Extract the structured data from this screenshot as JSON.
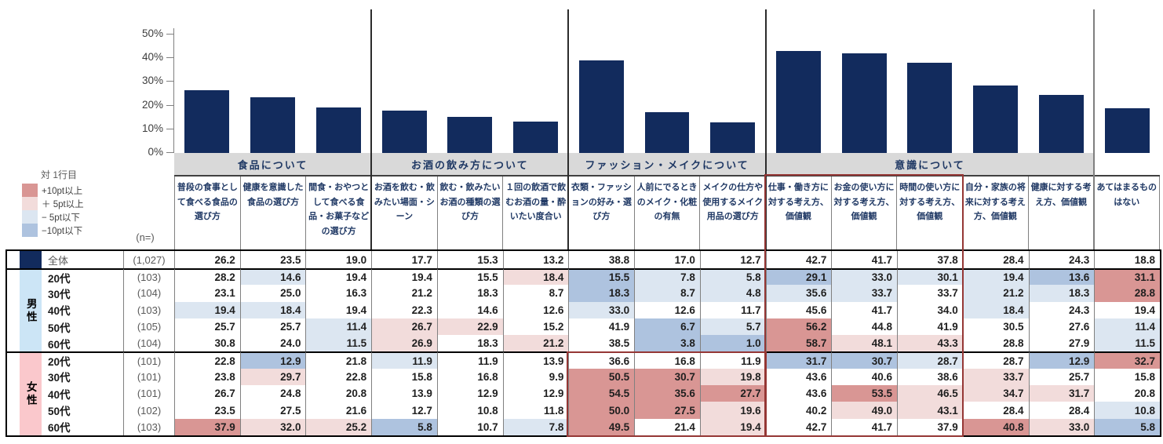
{
  "colors": {
    "bar": "#122B5D",
    "band": "#D9D9D9",
    "p2": "#D99694",
    "p1": "#F2DCDB",
    "m1": "#DCE6F1",
    "m2": "#AEC3DF",
    "male_swatch": "#CCE5F6",
    "female_swatch": "#FAC8CC",
    "total_swatch": "#122B5D",
    "highlight_box": "#953735"
  },
  "legend": {
    "title": "対 1行目",
    "items": [
      {
        "code": "p2",
        "label": "+10pt以上"
      },
      {
        "code": "p1",
        "label": "＋ 5pt以上"
      },
      {
        "code": "m1",
        "label": "− 5pt以下"
      },
      {
        "code": "m2",
        "label": "−10pt以下"
      }
    ]
  },
  "chart_data": [
    {
      "type": "bar",
      "title": "",
      "categories": [
        "普段の食事として食べる食品の選び方",
        "健康を意識した食品の選び方",
        "間食・おやつとして食べる食品・お菓子などの選び方",
        "お酒を飲む・飲みたい場面・シーン",
        "飲む・飲みたいお酒の種類の選び方",
        "１回の飲酒で飲むお酒の量・酔いたい度合い",
        "衣類・ファッションの好み・選び方",
        "人前にでるときのメイク・化粧の有無",
        "メイクの仕方や使用するメイク用品の選び方",
        "仕事・働き方に対する考え方、価値観",
        "お金の使い方に対する考え方、価値観",
        "時間の使い方に対する考え方、価値観",
        "自分・家族の将来に対する考え方、価値観",
        "健康に対する考え方、価値観",
        "あてはまるものはない"
      ],
      "values": [
        26.2,
        23.5,
        19.0,
        17.7,
        15.3,
        13.2,
        38.8,
        17.0,
        12.7,
        42.7,
        41.7,
        37.8,
        28.4,
        24.3,
        18.8
      ],
      "ylim": [
        0,
        50
      ],
      "grid": false,
      "y_tick_labels": [
        "50%",
        "40%",
        "30%",
        "20%",
        "10%",
        "0%"
      ],
      "group_bands": [
        {
          "label": "食品について",
          "span": 3
        },
        {
          "label": "お酒の飲み方について",
          "span": 3
        },
        {
          "label": "ファッション・メイクについて",
          "span": 3
        },
        {
          "label": "意識について",
          "span": 5
        },
        {
          "label": "",
          "span": 1
        }
      ]
    },
    {
      "type": "table",
      "n_label": "(n=)",
      "columns": [
        "普段の食事として食べる食品の選び方",
        "健康を意識した食品の選び方",
        "間食・おやつとして食べる食品・お菓子などの選び方",
        "お酒を飲む・飲みたい場面・シーン",
        "飲む・飲みたいお酒の種類の選び方",
        "１回の飲酒で飲むお酒の量・酔いたい度合い",
        "衣類・ファッションの好み・選び方",
        "人前にでるときのメイク・化粧の有無",
        "メイクの仕方や使用するメイク用品の選び方",
        "仕事・働き方に対する考え方、価値観",
        "お金の使い方に対する考え方、価値観",
        "時間の使い方に対する考え方、価値観",
        "自分・家族の将来に対する考え方、価値観",
        "健康に対する考え方、価値観",
        "あてはまるものはない"
      ],
      "blocks": [
        {
          "id": "total",
          "label": "",
          "swatch": "total_swatch",
          "rows": [
            {
              "label": "全体",
              "n": "(1,027)",
              "values": [
                26.2,
                23.5,
                19.0,
                17.7,
                15.3,
                13.2,
                38.8,
                17.0,
                12.7,
                42.7,
                41.7,
                37.8,
                28.4,
                24.3,
                18.8
              ],
              "hl": [
                "",
                "",
                "",
                "",
                "",
                "",
                "",
                "",
                "",
                "",
                "",
                "",
                "",
                "",
                ""
              ]
            }
          ]
        },
        {
          "id": "male",
          "label": "男性",
          "swatch": "male_swatch",
          "rows": [
            {
              "label": "20代",
              "n": "(103)",
              "values": [
                28.2,
                14.6,
                19.4,
                19.4,
                15.5,
                18.4,
                15.5,
                7.8,
                5.8,
                29.1,
                33.0,
                30.1,
                19.4,
                13.6,
                31.1
              ],
              "hl": [
                "",
                "m1",
                "",
                "",
                "",
                "p1",
                "m2",
                "m1",
                "m1",
                "m2",
                "m1",
                "m1",
                "m1",
                "m2",
                "p2"
              ]
            },
            {
              "label": "30代",
              "n": "(104)",
              "values": [
                23.1,
                25.0,
                16.3,
                21.2,
                18.3,
                8.7,
                18.3,
                8.7,
                4.8,
                35.6,
                33.7,
                33.7,
                21.2,
                18.3,
                28.8
              ],
              "hl": [
                "",
                "",
                "",
                "",
                "",
                "",
                "m2",
                "m1",
                "m1",
                "m1",
                "m1",
                "",
                "m1",
                "m1",
                "p2"
              ]
            },
            {
              "label": "40代",
              "n": "(103)",
              "values": [
                19.4,
                18.4,
                19.4,
                22.3,
                14.6,
                12.6,
                33.0,
                12.6,
                11.7,
                45.6,
                41.7,
                34.0,
                18.4,
                24.3,
                19.4
              ],
              "hl": [
                "m1",
                "m1",
                "",
                "",
                "",
                "",
                "m1",
                "",
                "",
                "",
                "",
                "",
                "m1",
                "",
                ""
              ]
            },
            {
              "label": "50代",
              "n": "(105)",
              "values": [
                25.7,
                25.7,
                11.4,
                26.7,
                22.9,
                15.2,
                41.9,
                6.7,
                5.7,
                56.2,
                44.8,
                41.9,
                30.5,
                27.6,
                11.4
              ],
              "hl": [
                "",
                "",
                "m1",
                "p1",
                "p1",
                "",
                "",
                "m2",
                "m1",
                "p2",
                "",
                "",
                "",
                "",
                "m1"
              ]
            },
            {
              "label": "60代",
              "n": "(104)",
              "values": [
                30.8,
                24.0,
                11.5,
                26.9,
                18.3,
                21.2,
                38.5,
                3.8,
                1.0,
                58.7,
                48.1,
                43.3,
                28.8,
                27.9,
                11.5
              ],
              "hl": [
                "",
                "",
                "m1",
                "p1",
                "",
                "p1",
                "",
                "m2",
                "m2",
                "p2",
                "p1",
                "p1",
                "",
                "",
                "m1"
              ]
            }
          ]
        },
        {
          "id": "female",
          "label": "女性",
          "swatch": "female_swatch",
          "rows": [
            {
              "label": "20代",
              "n": "(101)",
              "values": [
                22.8,
                12.9,
                21.8,
                11.9,
                11.9,
                13.9,
                36.6,
                16.8,
                11.9,
                31.7,
                30.7,
                28.7,
                28.7,
                12.9,
                32.7
              ],
              "hl": [
                "",
                "m2",
                "",
                "m1",
                "",
                "",
                "",
                "",
                "",
                "m2",
                "m2",
                "m1",
                "",
                "m2",
                "p2"
              ]
            },
            {
              "label": "30代",
              "n": "(101)",
              "values": [
                23.8,
                29.7,
                22.8,
                15.8,
                16.8,
                9.9,
                50.5,
                30.7,
                19.8,
                43.6,
                40.6,
                38.6,
                33.7,
                25.7,
                15.8
              ],
              "hl": [
                "",
                "p1",
                "",
                "",
                "",
                "",
                "p2",
                "p2",
                "p1",
                "",
                "",
                "",
                "p1",
                "",
                ""
              ]
            },
            {
              "label": "40代",
              "n": "(101)",
              "values": [
                26.7,
                24.8,
                20.8,
                13.9,
                12.9,
                12.9,
                54.5,
                35.6,
                27.7,
                43.6,
                53.5,
                46.5,
                34.7,
                31.7,
                20.8
              ],
              "hl": [
                "",
                "",
                "",
                "",
                "",
                "",
                "p2",
                "p2",
                "p2",
                "",
                "p2",
                "p1",
                "p1",
                "p1",
                ""
              ]
            },
            {
              "label": "50代",
              "n": "(102)",
              "values": [
                23.5,
                27.5,
                21.6,
                12.7,
                10.8,
                11.8,
                50.0,
                27.5,
                19.6,
                40.2,
                49.0,
                43.1,
                28.4,
                28.4,
                10.8
              ],
              "hl": [
                "",
                "",
                "",
                "",
                "",
                "",
                "p2",
                "p2",
                "p1",
                "",
                "p1",
                "p1",
                "",
                "",
                "m1"
              ]
            },
            {
              "label": "60代",
              "n": "(103)",
              "values": [
                37.9,
                32.0,
                25.2,
                5.8,
                10.7,
                7.8,
                49.5,
                21.4,
                19.4,
                42.7,
                41.7,
                37.9,
                40.8,
                33.0,
                5.8
              ],
              "hl": [
                "p2",
                "p1",
                "p1",
                "m2",
                "",
                "m1",
                "p2",
                "",
                "p1",
                "",
                "",
                "",
                "p2",
                "p1",
                "m2"
              ]
            }
          ]
        }
      ]
    }
  ],
  "annotations": {
    "highlight_boxes": [
      {
        "id": "ishiki-work-money-time-box",
        "col_start": 10,
        "col_end": 12,
        "row_scope": "all"
      },
      {
        "id": "fashion-makeup-female-box",
        "col_start": 7,
        "col_end": 9,
        "row_scope": "female"
      }
    ]
  }
}
